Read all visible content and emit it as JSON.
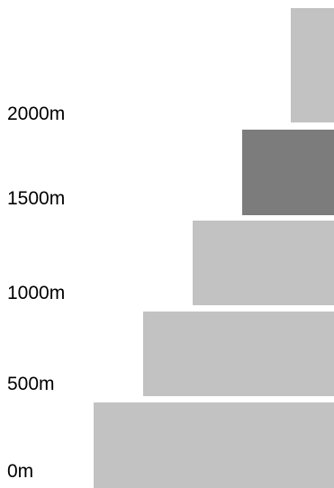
{
  "axis_labels": [
    "0m",
    "500m",
    "1000m",
    "1500m",
    "2000m"
  ],
  "tiers": [
    {
      "index": 0,
      "highlighted": false
    },
    {
      "index": 1,
      "highlighted": false
    },
    {
      "index": 2,
      "highlighted": false
    },
    {
      "index": 3,
      "highlighted": true
    },
    {
      "index": 4,
      "highlighted": false
    }
  ],
  "colors": {
    "tier": "#c2c2c2",
    "highlight": "#7c7c7c",
    "label": "#000000",
    "background": "#ffffff"
  }
}
